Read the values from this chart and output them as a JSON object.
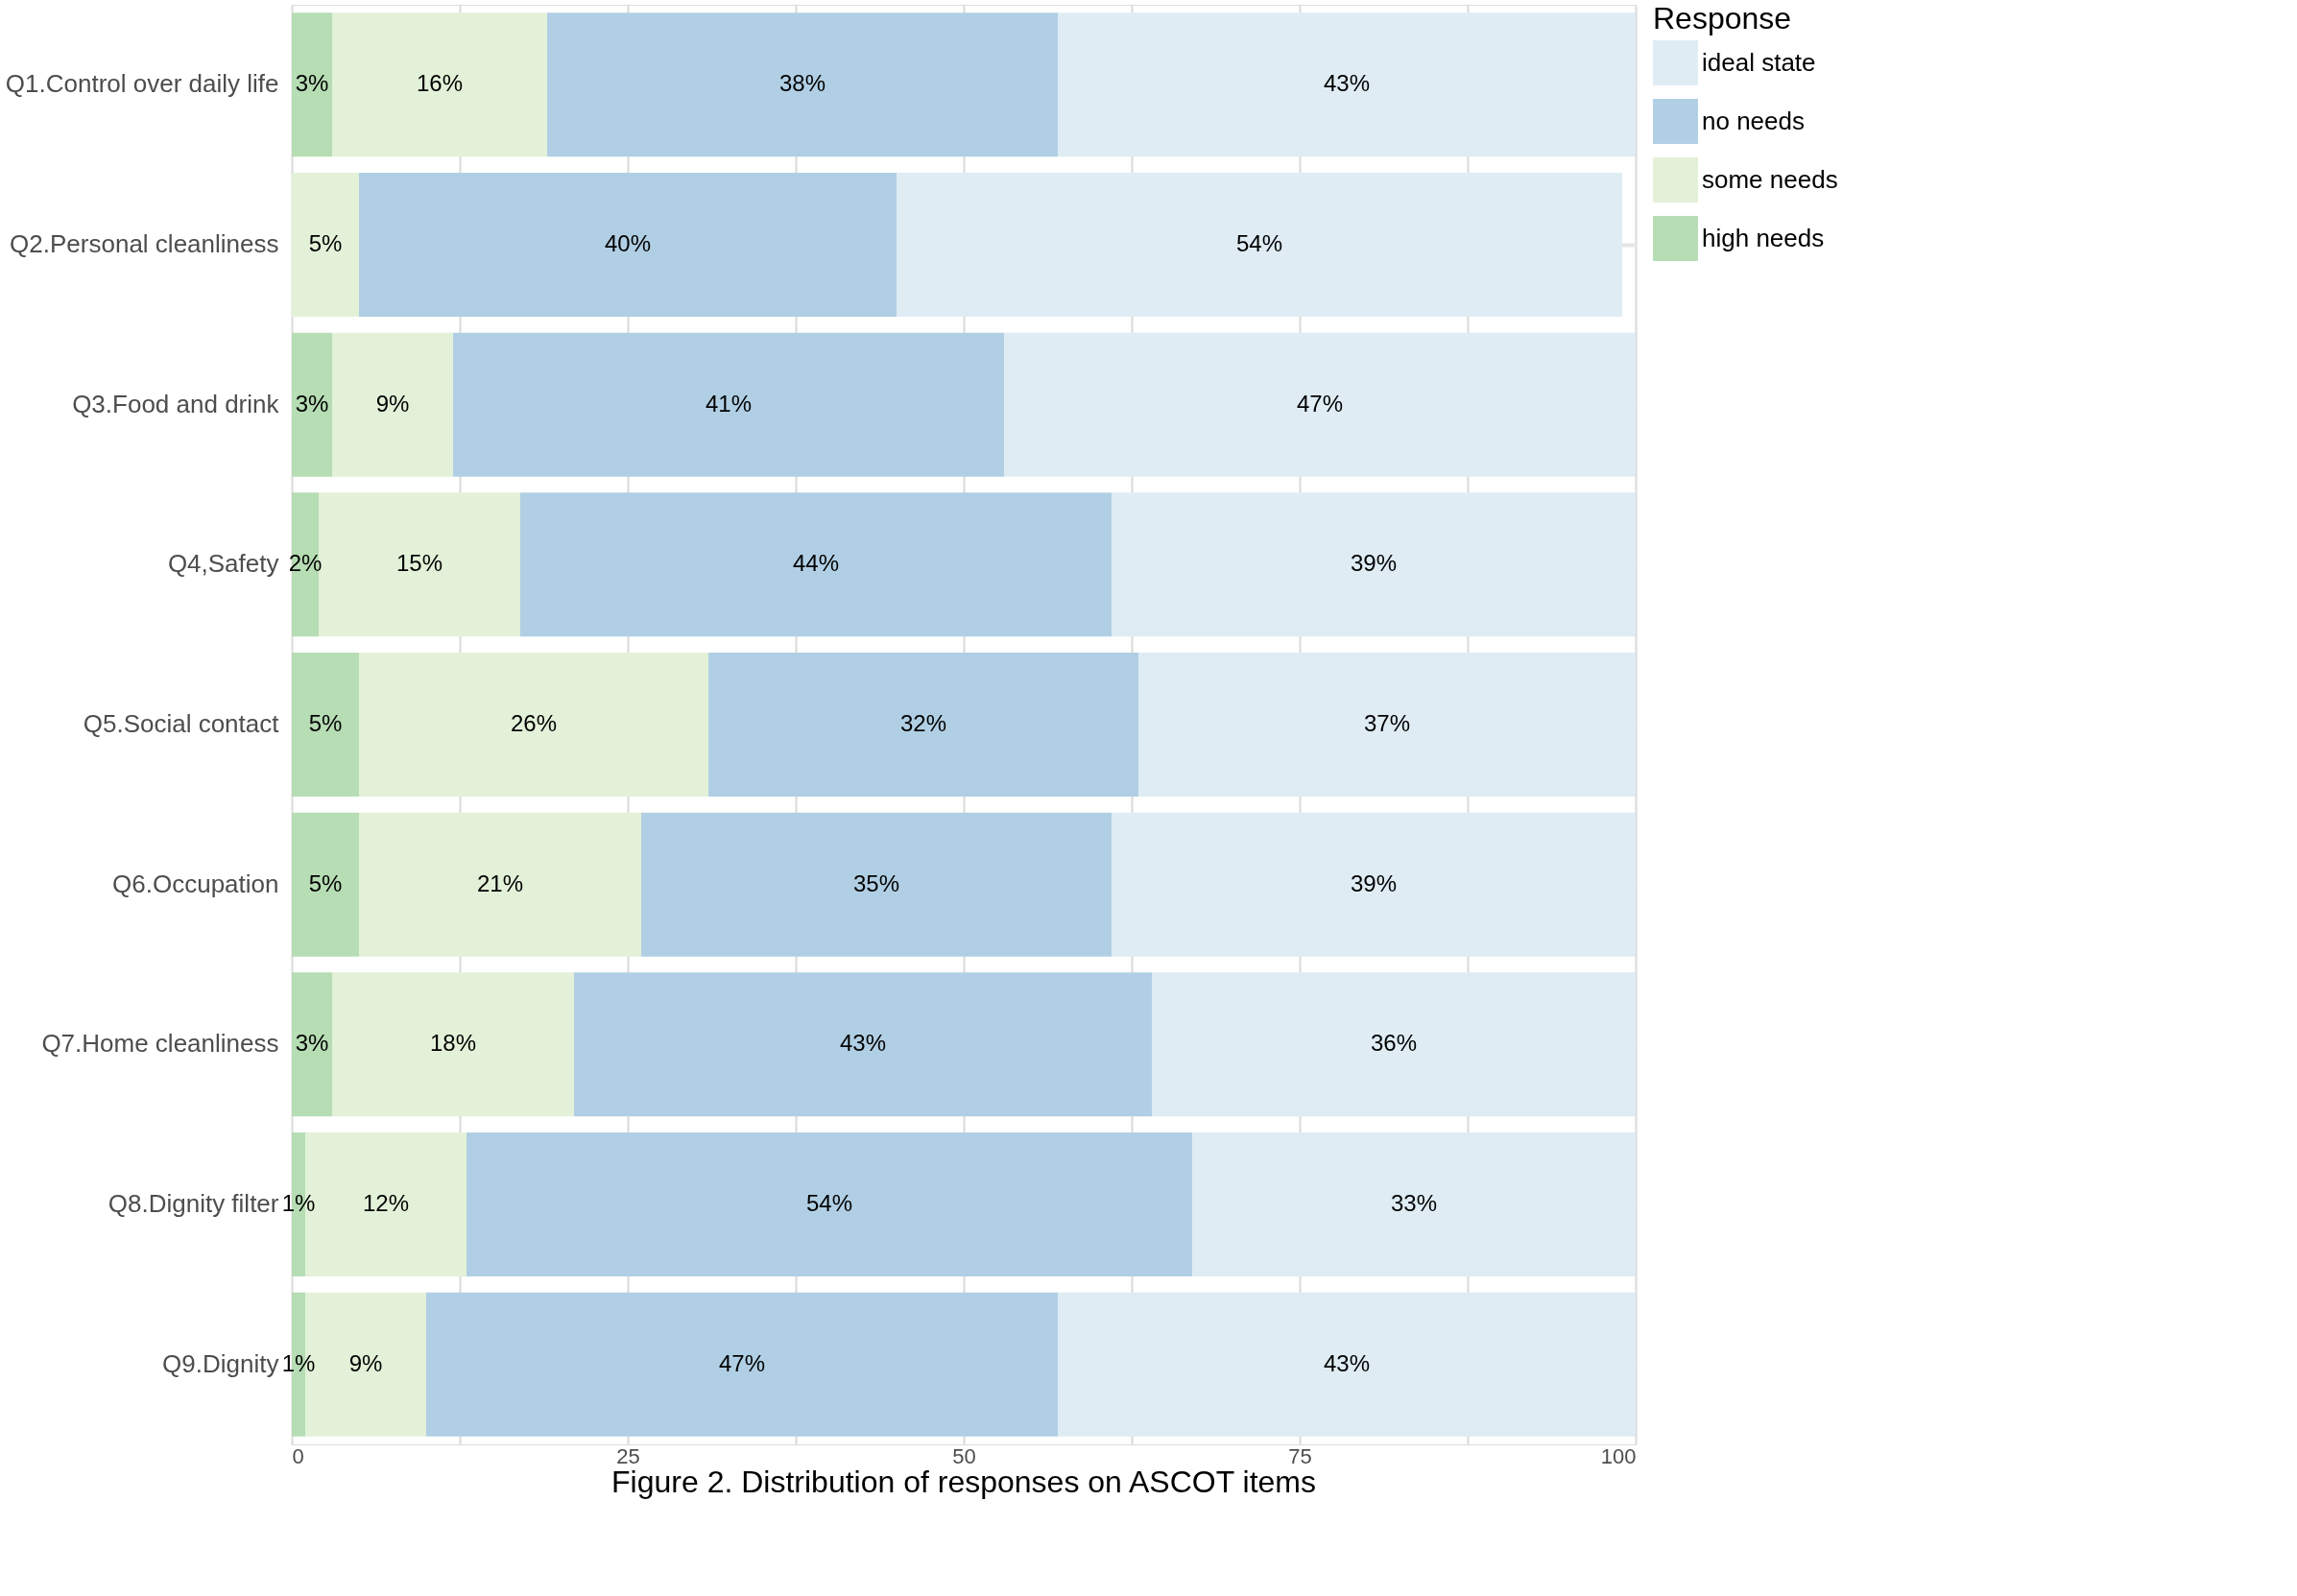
{
  "chart_data": {
    "type": "bar",
    "orientation": "horizontal",
    "stacked": true,
    "title": "Figure 2. Distribution of responses on ASCOT items",
    "legend_title": "Response",
    "legend": "right",
    "grid": true,
    "categories": [
      "Q1.Control over daily life",
      "Q2.Personal cleanliness",
      "Q3.Food and drink",
      "Q4,Safety",
      "Q5.Social contact",
      "Q6.Occupation",
      "Q7.Home cleanliness",
      "Q8.Dignity filter",
      "Q9.Dignity"
    ],
    "xlim": [
      0,
      100
    ],
    "xticks": [
      0,
      {
        "value": 12.5,
        "label": null
      },
      25,
      {
        "value": 37.5,
        "label": null
      },
      50,
      {
        "value": 62.5,
        "label": null
      },
      75,
      {
        "value": 87.5,
        "label": null
      },
      100
    ],
    "series": [
      {
        "name": "high needs",
        "color": "#b6ddb4",
        "values": [
          3,
          0,
          3,
          2,
          5,
          5,
          3,
          1,
          1
        ],
        "value_labels": [
          "3%",
          null,
          "3%",
          "2%",
          "5%",
          "5%",
          "3%",
          "1%",
          "1%"
        ]
      },
      {
        "name": "some needs",
        "color": "#e3f1d8",
        "values": [
          16,
          5,
          9,
          15,
          26,
          21,
          18,
          12,
          9
        ],
        "value_labels": [
          "16%",
          "5%",
          "9%",
          "15%",
          "26%",
          "21%",
          "18%",
          "12%",
          "9%"
        ]
      },
      {
        "name": "no needs",
        "color": "#b1cfe4",
        "values": [
          38,
          40,
          41,
          44,
          32,
          35,
          43,
          54,
          47
        ],
        "value_labels": [
          "38%",
          "40%",
          "41%",
          "44%",
          "32%",
          "35%",
          "43%",
          "54%",
          "47%"
        ]
      },
      {
        "name": "ideal state",
        "color": "#dfecf4",
        "values": [
          43,
          54,
          47,
          39,
          37,
          39,
          36,
          33,
          43
        ],
        "value_labels": [
          "43%",
          "54%",
          "47%",
          "39%",
          "37%",
          "39%",
          "36%",
          "33%",
          "43%"
        ]
      }
    ]
  }
}
